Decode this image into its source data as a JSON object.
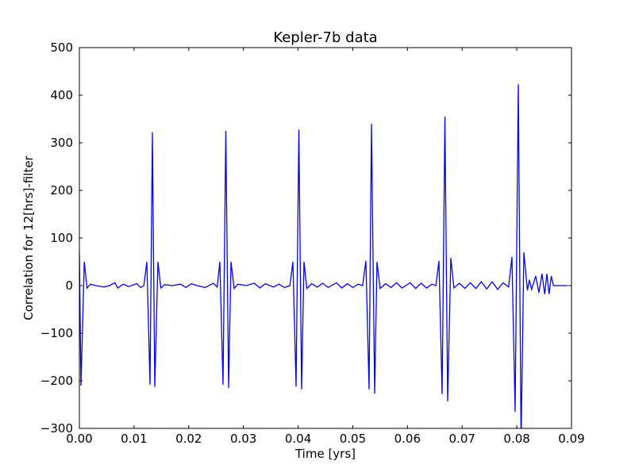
{
  "chart_data": {
    "type": "line",
    "title": "Kepler-7b data",
    "x_label": "Time [yrs]",
    "y_label": "Correlation for  12[hrs]-filter",
    "color": "#0000ff",
    "x": [
      0,
      0.00029,
      0.0009,
      0.0014,
      0.002,
      0.003,
      0.0045,
      0.0055,
      0.0065,
      0.007,
      0.008,
      0.009,
      0.0105,
      0.0112,
      0.0118,
      0.01234,
      0.01292,
      0.01335,
      0.01379,
      0.01437,
      0.0149,
      0.0156,
      0.017,
      0.0185,
      0.0195,
      0.0205,
      0.0215,
      0.023,
      0.0245,
      0.0252,
      0.02569,
      0.02627,
      0.02678,
      0.02729,
      0.02773,
      0.0283,
      0.029,
      0.0305,
      0.032,
      0.033,
      0.034,
      0.0355,
      0.0365,
      0.0375,
      0.0385,
      0.03905,
      0.03963,
      0.04014,
      0.04064,
      0.04108,
      0.0416,
      0.0425,
      0.0435,
      0.0445,
      0.0455,
      0.047,
      0.048,
      0.049,
      0.05,
      0.051,
      0.0518,
      0.0524,
      0.05298,
      0.05342,
      0.054,
      0.05443,
      0.055,
      0.056,
      0.057,
      0.058,
      0.059,
      0.0605,
      0.0615,
      0.0625,
      0.0635,
      0.0645,
      0.0652,
      0.06576,
      0.06634,
      0.06685,
      0.06735,
      0.06793,
      0.0685,
      0.0695,
      0.0705,
      0.0715,
      0.0725,
      0.0735,
      0.0745,
      0.0755,
      0.0765,
      0.0775,
      0.0785,
      0.07911,
      0.07969,
      0.08027,
      0.08078,
      0.08129,
      0.08194,
      0.0823,
      0.0827,
      0.08346,
      0.08404,
      0.0846,
      0.0851,
      0.0855,
      0.0859,
      0.0863,
      0.0867,
      0.0871,
      0.0893
    ],
    "values": [
      70,
      -210,
      50,
      -5,
      3,
      0,
      -3,
      0,
      6,
      -5,
      3,
      -2,
      4,
      -4,
      0,
      50,
      -208,
      322,
      -213,
      50,
      -5,
      2,
      0,
      3,
      -4,
      4,
      0,
      -4,
      5,
      -3,
      50,
      -208,
      325,
      -215,
      50,
      -6,
      3,
      0,
      5,
      -5,
      4,
      -3,
      3,
      -4,
      0,
      50,
      -212,
      328,
      -218,
      50,
      -6,
      4,
      -3,
      5,
      -4,
      6,
      -5,
      4,
      -4,
      3,
      0,
      52,
      -218,
      340,
      -227,
      50,
      -6,
      4,
      -4,
      6,
      -5,
      6,
      -6,
      5,
      -5,
      3,
      0,
      52,
      -228,
      355,
      -243,
      58,
      -5,
      5,
      -6,
      6,
      -6,
      8,
      -7,
      8,
      -8,
      6,
      -3,
      60,
      -265,
      423,
      -330,
      70,
      -10,
      12,
      -8,
      20,
      -15,
      25,
      -18,
      25,
      -18,
      20,
      0,
      0,
      0
    ],
    "xlim": [
      0,
      0.09
    ],
    "ylim": [
      -300,
      500
    ],
    "xticks": [
      {
        "value": 0,
        "label": "0.00"
      },
      {
        "value": 0.01,
        "label": "0.01"
      },
      {
        "value": 0.02,
        "label": "0.02"
      },
      {
        "value": 0.03,
        "label": "0.03"
      },
      {
        "value": 0.04,
        "label": "0.04"
      },
      {
        "value": 0.05,
        "label": "0.05"
      },
      {
        "value": 0.06,
        "label": "0.06"
      },
      {
        "value": 0.07,
        "label": "0.07"
      },
      {
        "value": 0.08,
        "label": "0.08"
      },
      {
        "value": 0.09,
        "label": "0.09"
      }
    ],
    "yticks": [
      {
        "value": -300,
        "label": "−300"
      },
      {
        "value": -200,
        "label": "−200"
      },
      {
        "value": -100,
        "label": "−100"
      },
      0,
      100,
      200,
      300,
      400,
      500
    ],
    "grid": false
  }
}
